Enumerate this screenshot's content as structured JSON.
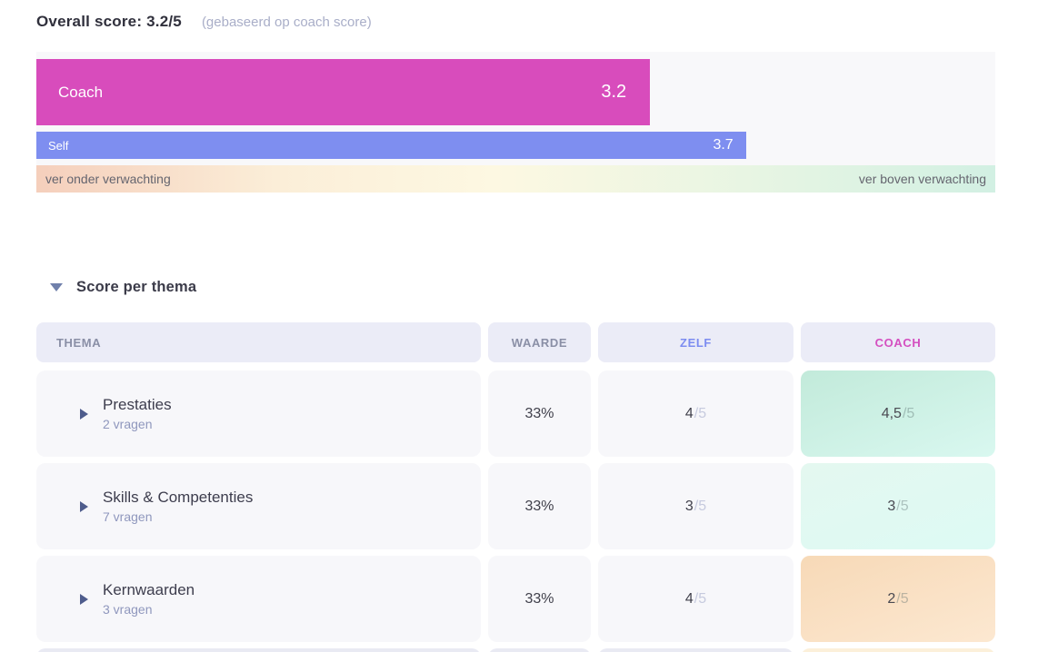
{
  "overall": {
    "title": "Overall score: 3.2/5",
    "note": "(gebaseerd op coach score)"
  },
  "chart_data": {
    "type": "bar",
    "orientation": "horizontal",
    "scale": [
      0,
      5
    ],
    "scale_max": 5,
    "series": [
      {
        "name": "Coach",
        "value": 3.2,
        "label": "3.2",
        "color": "#d84cbc"
      },
      {
        "name": "Self",
        "value": 3.7,
        "label": "3.7",
        "color": "#7e8ef0"
      }
    ],
    "scale_labels": {
      "left": "ver onder verwachting",
      "right": "ver boven verwachting"
    }
  },
  "section": {
    "title": "Score per thema"
  },
  "table": {
    "headers": {
      "thema": "THEMA",
      "waarde": "WAARDE",
      "zelf": "ZELF",
      "coach": "COACH"
    },
    "max_suffix": "/5",
    "rows": [
      {
        "title": "Prestaties",
        "subtitle": "2 vragen",
        "waarde": "33%",
        "zelf": "4",
        "coach": "4,5",
        "coach_tone": "mint-strong"
      },
      {
        "title": "Skills & Competenties",
        "subtitle": "7 vragen",
        "waarde": "33%",
        "zelf": "3",
        "coach": "3",
        "coach_tone": "mint-light"
      },
      {
        "title": "Kernwaarden",
        "subtitle": "3 vragen",
        "waarde": "33%",
        "zelf": "4",
        "coach": "2",
        "coach_tone": "peach"
      }
    ]
  },
  "colors": {
    "coach_pink": "#d84cbc",
    "self_blue": "#7e8ef0",
    "zelf_header_text": "#7c8cf0",
    "coach_header_text": "#d44fc0"
  }
}
